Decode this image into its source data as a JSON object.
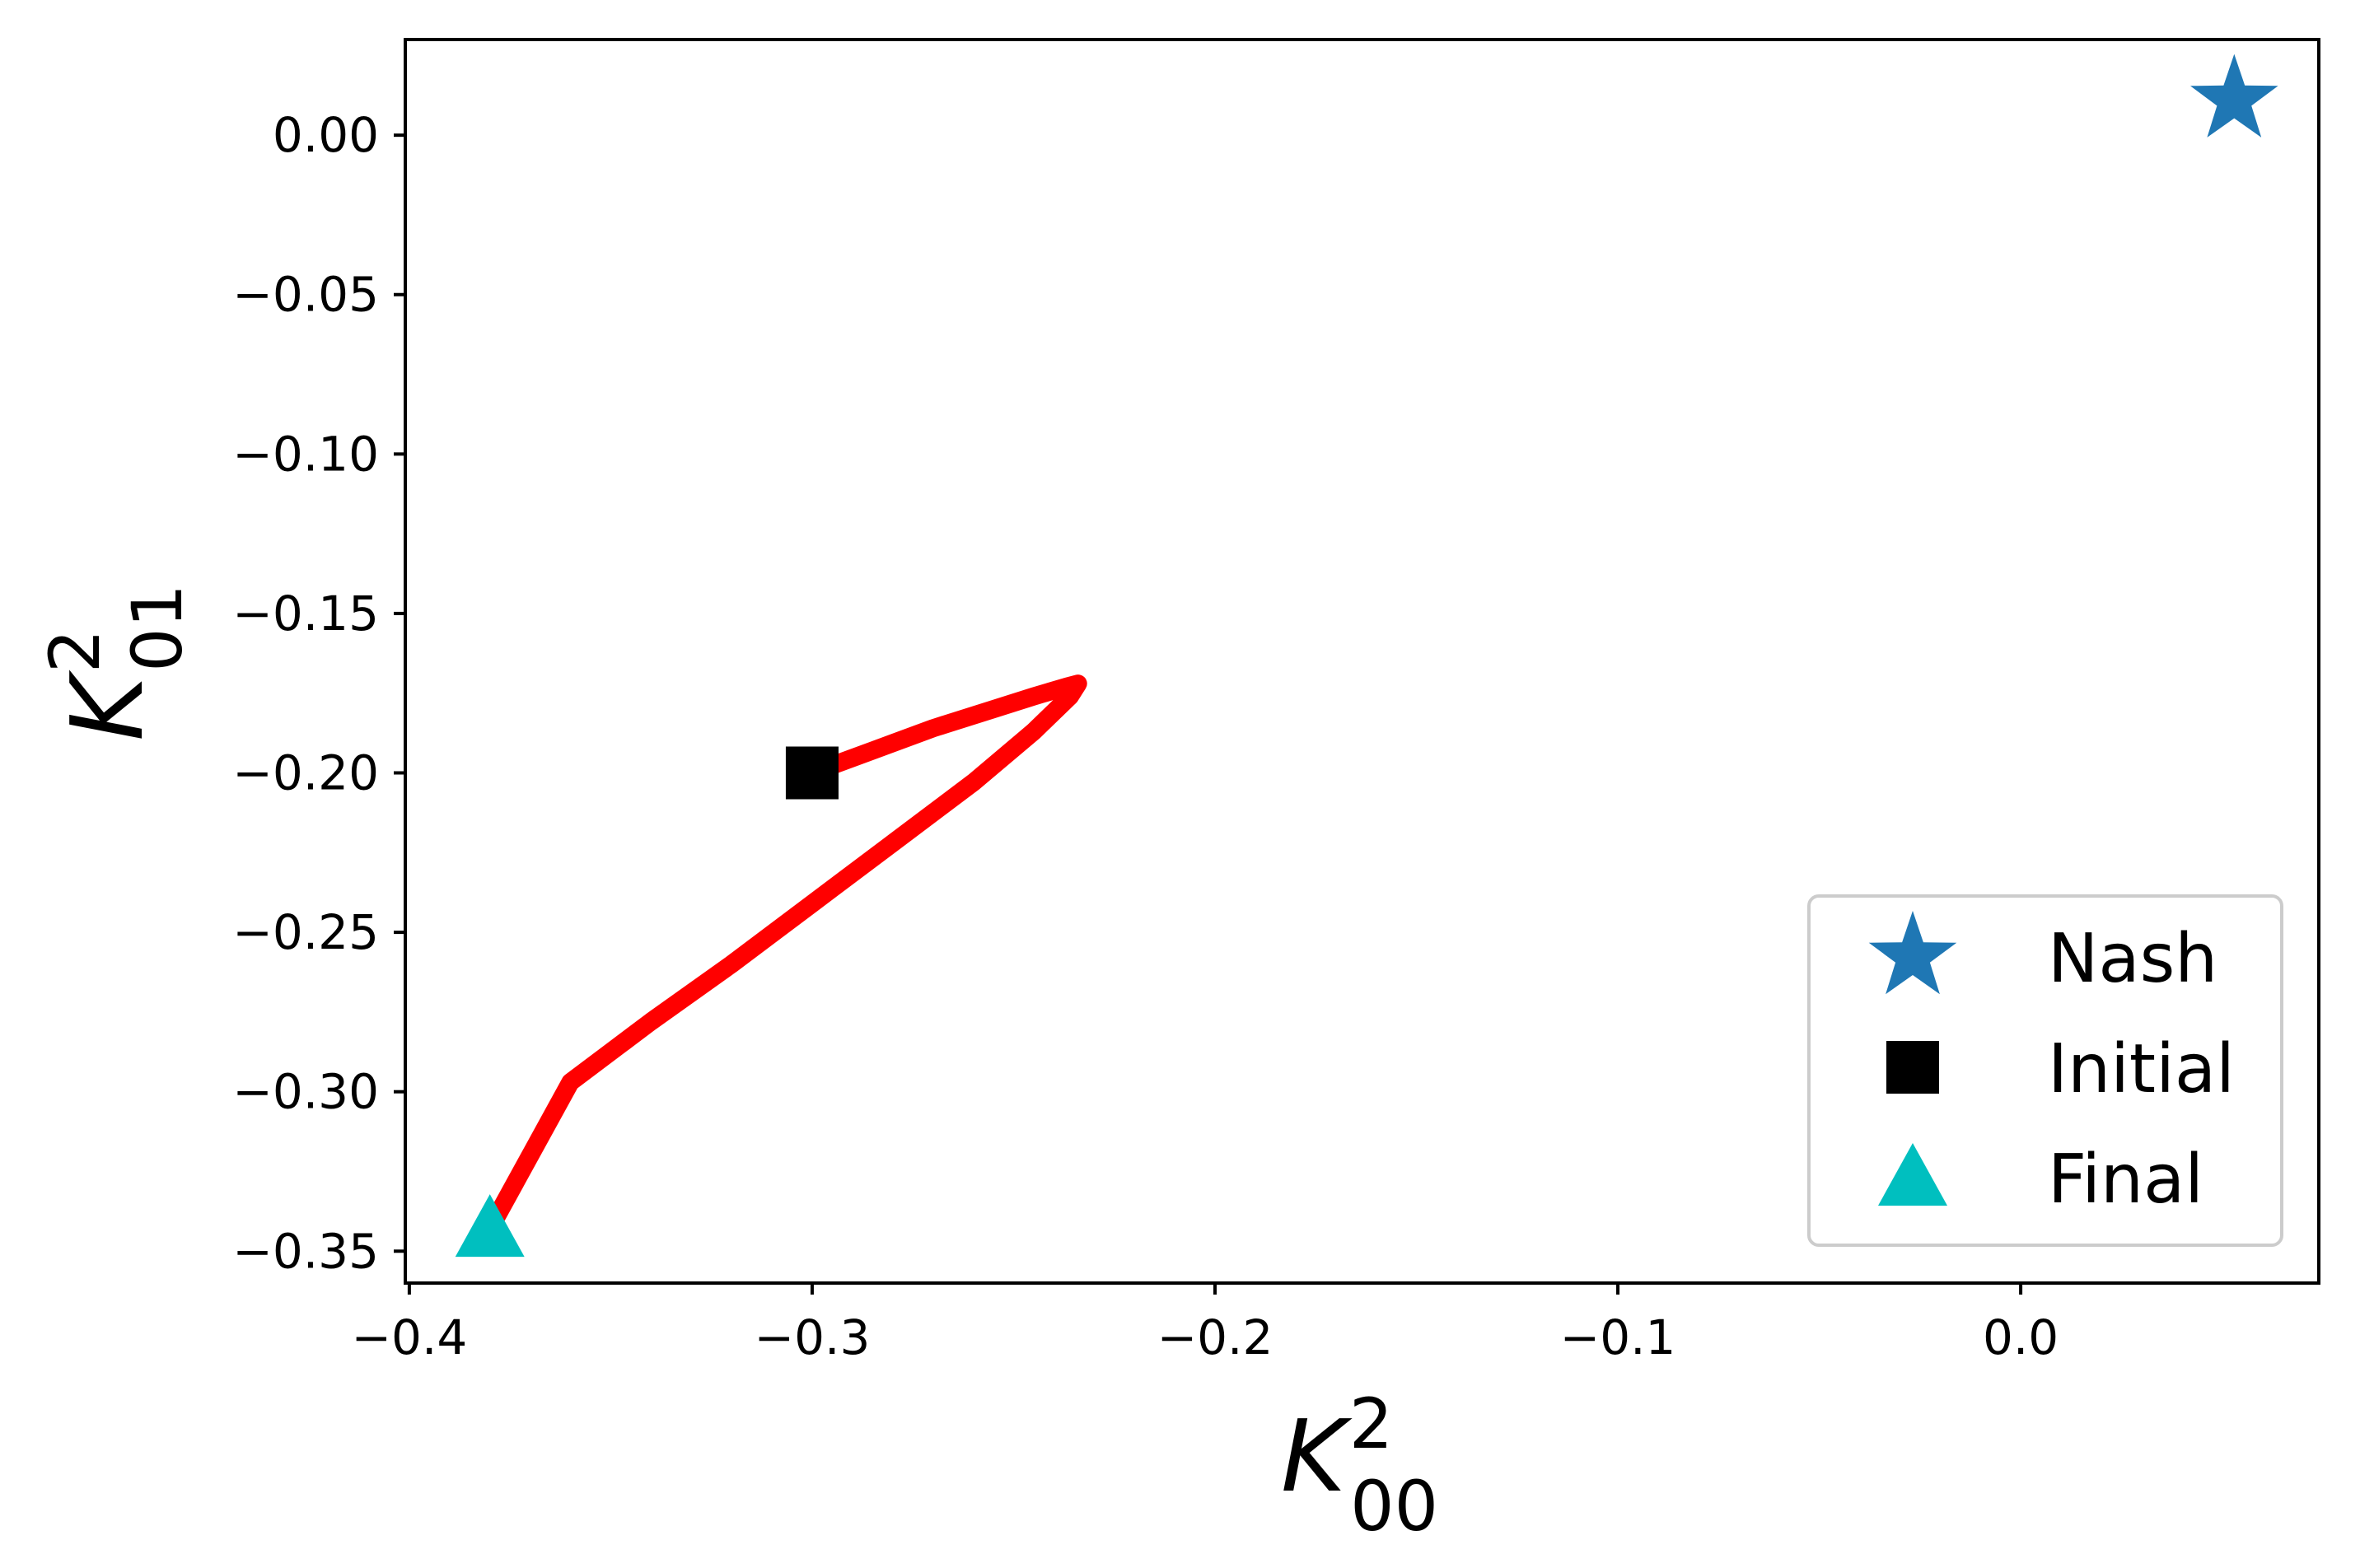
{
  "chart_data": {
    "type": "line",
    "title": "",
    "xlabel": {
      "base": "K",
      "sup": "2",
      "sub": "00"
    },
    "ylabel": {
      "base": "K",
      "sup": "2",
      "sub": "01"
    },
    "xlim": [
      -0.401,
      0.074
    ],
    "ylim": [
      -0.36,
      0.03
    ],
    "xticks": [
      -0.4,
      -0.3,
      -0.2,
      -0.1,
      0.0
    ],
    "xtick_labels": [
      "−0.4",
      "−0.3",
      "−0.2",
      "−0.1",
      "0.0"
    ],
    "yticks": [
      0.0,
      -0.05,
      -0.1,
      -0.15,
      -0.2,
      -0.25,
      -0.3,
      -0.35
    ],
    "ytick_labels": [
      "0.00",
      "−0.05",
      "−0.10",
      "−0.15",
      "−0.20",
      "−0.25",
      "−0.30",
      "−0.35"
    ],
    "grid": false,
    "legend_position": "lower-right",
    "series": [
      {
        "kind": "trajectory",
        "color": "#ff0000",
        "x": [
          -0.3,
          -0.285,
          -0.27,
          -0.255,
          -0.245,
          -0.237,
          -0.234,
          -0.236,
          -0.245,
          -0.26,
          -0.28,
          -0.3,
          -0.32,
          -0.34,
          -0.36,
          -0.38
        ],
        "y": [
          -0.2,
          -0.193,
          -0.186,
          -0.18,
          -0.176,
          -0.173,
          -0.172,
          -0.176,
          -0.187,
          -0.203,
          -0.222,
          -0.241,
          -0.26,
          -0.278,
          -0.297,
          -0.343
        ]
      }
    ],
    "markers": [
      {
        "name": "Nash",
        "shape": "star",
        "color": "#1f77b4",
        "x": 0.053,
        "y": 0.011
      },
      {
        "name": "Initial",
        "shape": "square",
        "color": "#000000",
        "x": -0.3,
        "y": -0.2
      },
      {
        "name": "Final",
        "shape": "triangle",
        "color": "#00bfbf",
        "x": -0.38,
        "y": -0.343
      }
    ]
  }
}
